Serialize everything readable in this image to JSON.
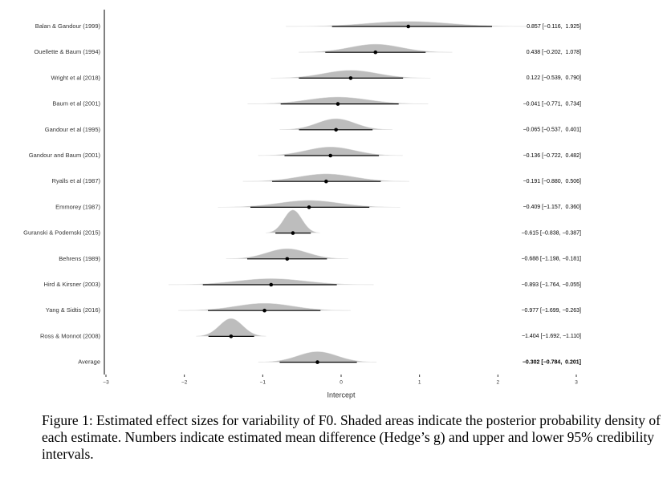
{
  "chart_data": {
    "type": "forest",
    "categories": [
      "Balan & Gandour (1999)",
      "Ouellette & Baum (1994)",
      "Wright et al (2018)",
      "Baum et al (2001)",
      "Gandour et al (1995)",
      "Gandour and Baum (2001)",
      "Ryalls et al (1987)",
      "Emmorey (1987)",
      "Guranski & Podemski (2015)",
      "Behrens (1989)",
      "Hird & Kirsner (2003)",
      "Yang & Sidtis (2016)",
      "Ross & Monnot (2008)",
      "Average"
    ],
    "values": [
      0.857,
      0.438,
      0.122,
      -0.041,
      -0.065,
      -0.136,
      -0.191,
      -0.409,
      -0.615,
      -0.688,
      -0.893,
      -0.977,
      -1.404,
      -0.302
    ],
    "lower": [
      -0.116,
      -0.202,
      -0.539,
      -0.771,
      -0.537,
      -0.722,
      -0.88,
      -1.157,
      -0.838,
      -1.198,
      -1.764,
      -1.699,
      -1.692,
      -0.784
    ],
    "upper": [
      1.925,
      1.078,
      0.79,
      0.734,
      0.401,
      0.482,
      0.506,
      0.36,
      -0.387,
      -0.181,
      -0.055,
      -0.263,
      -1.11,
      0.201
    ],
    "value_labels": [
      "0.857 [−0.116,  1.925]",
      "0.438 [−0.202,  1.078]",
      "0.122 [−0.539,  0.790]",
      "−0.041 [−0.771,  0.734]",
      "−0.065 [−0.537,  0.401]",
      "−0.136 [−0.722,  0.482]",
      "−0.191 [−0.880,  0.506]",
      "−0.409 [−1.157,  0.360]",
      "−0.615 [−0.838, −0.387]",
      "−0.688 [−1.198, −0.181]",
      "−0.893 [−1.764, −0.055]",
      "−0.977 [−1.699, −0.263]",
      "−1.404 [−1.692, −1.110]",
      "−0.302 [−0.784,  0.201]"
    ],
    "color": "#bdbdbd",
    "xlabel": "Intercept",
    "xlim": [
      -3,
      3
    ],
    "xticks": [
      {
        "value": -3,
        "label": "−3"
      },
      {
        "value": -2,
        "label": "−2"
      },
      {
        "value": -1,
        "label": "−1"
      },
      0,
      1,
      2,
      3
    ]
  },
  "caption": "Figure 1: Estimated effect sizes for variability of F0. Shaded areas indicate the posterior probability density of each estimate. Numbers indicate estimated mean difference (Hedge’s g) and upper and lower 95% credibility intervals."
}
